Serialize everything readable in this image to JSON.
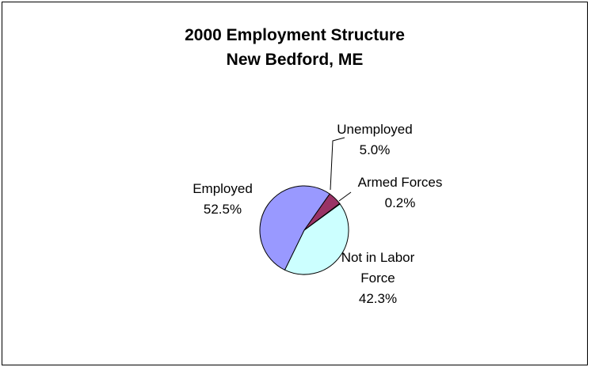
{
  "chart_data": {
    "type": "pie",
    "title": "2000 Employment Structure",
    "subtitle": "New Bedford, ME",
    "slices": [
      {
        "name": "Employed",
        "value": 52.5,
        "label_lines": [
          "Employed"
        ],
        "value_label": "52.5%",
        "color": "#9999ff"
      },
      {
        "name": "Unemployed",
        "value": 5.0,
        "label_lines": [
          "Unemployed"
        ],
        "value_label": "5.0%",
        "color": "#993366"
      },
      {
        "name": "Armed Forces",
        "value": 0.2,
        "label_lines": [
          "Armed Forces"
        ],
        "value_label": "0.2%",
        "color": "#ffffcc"
      },
      {
        "name": "Not in Labor Force",
        "value": 42.3,
        "label_lines": [
          "Not in Labor",
          "Force"
        ],
        "value_label": "42.3%",
        "color": "#ccffff"
      }
    ],
    "legend": "none",
    "start_angle_deg": 21,
    "direction": "counterclockwise",
    "slice_border_color": "#000000"
  }
}
